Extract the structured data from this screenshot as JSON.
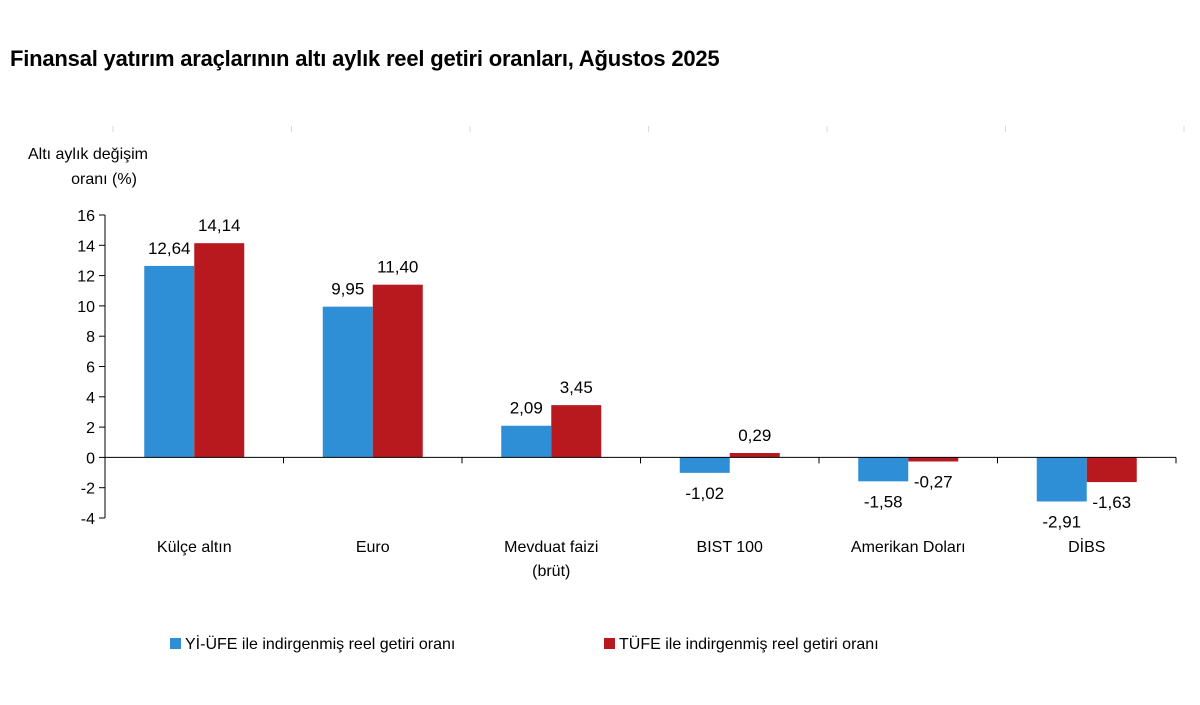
{
  "chart_data": {
    "type": "bar",
    "title": "Finansal yatırım araçlarının altı aylık reel getiri oranları, Ağustos 2025",
    "ylabel": "Altı aylık değişim oranı (%)",
    "ylabel_lines": [
      "Altı aylık değişim",
      "oranı (%)"
    ],
    "xlabel": "",
    "ylim": [
      -4,
      16
    ],
    "yticks": [
      16,
      14,
      12,
      10,
      8,
      6,
      4,
      2,
      0,
      -2,
      -4
    ],
    "ytick_labels": [
      "16",
      "14",
      "12",
      "10",
      "8",
      "6",
      "4",
      "2",
      "0",
      "-2",
      "-4"
    ],
    "categories": [
      "Külçe altın",
      "Euro",
      "Mevduat faizi (brüt)",
      "BIST 100",
      "Amerikan Doları",
      "DİBS"
    ],
    "category_lines": [
      [
        "Külçe altın"
      ],
      [
        "Euro"
      ],
      [
        "Mevduat faizi",
        "(brüt)"
      ],
      [
        "BIST 100"
      ],
      [
        "Amerikan Doları"
      ],
      [
        "DİBS"
      ]
    ],
    "series": [
      {
        "name": "Yİ-ÜFE ile indirgenmiş reel getiri oranı",
        "color": "#2e8fd6",
        "values": [
          12.64,
          9.95,
          2.09,
          -1.02,
          -1.58,
          -2.91
        ],
        "labels": [
          "12,64",
          "9,95",
          "2,09",
          "-1,02",
          "-1,58",
          "-2,91"
        ]
      },
      {
        "name": "TÜFE ile indirgenmiş reel getiri oranı",
        "color": "#b7191f",
        "values": [
          14.14,
          11.4,
          3.45,
          0.29,
          -0.27,
          -1.63
        ],
        "labels": [
          "14,14",
          "11,40",
          "3,45",
          "0,29",
          "-0,27",
          "-1,63"
        ]
      }
    ],
    "grid": false,
    "legend": "bottom"
  }
}
